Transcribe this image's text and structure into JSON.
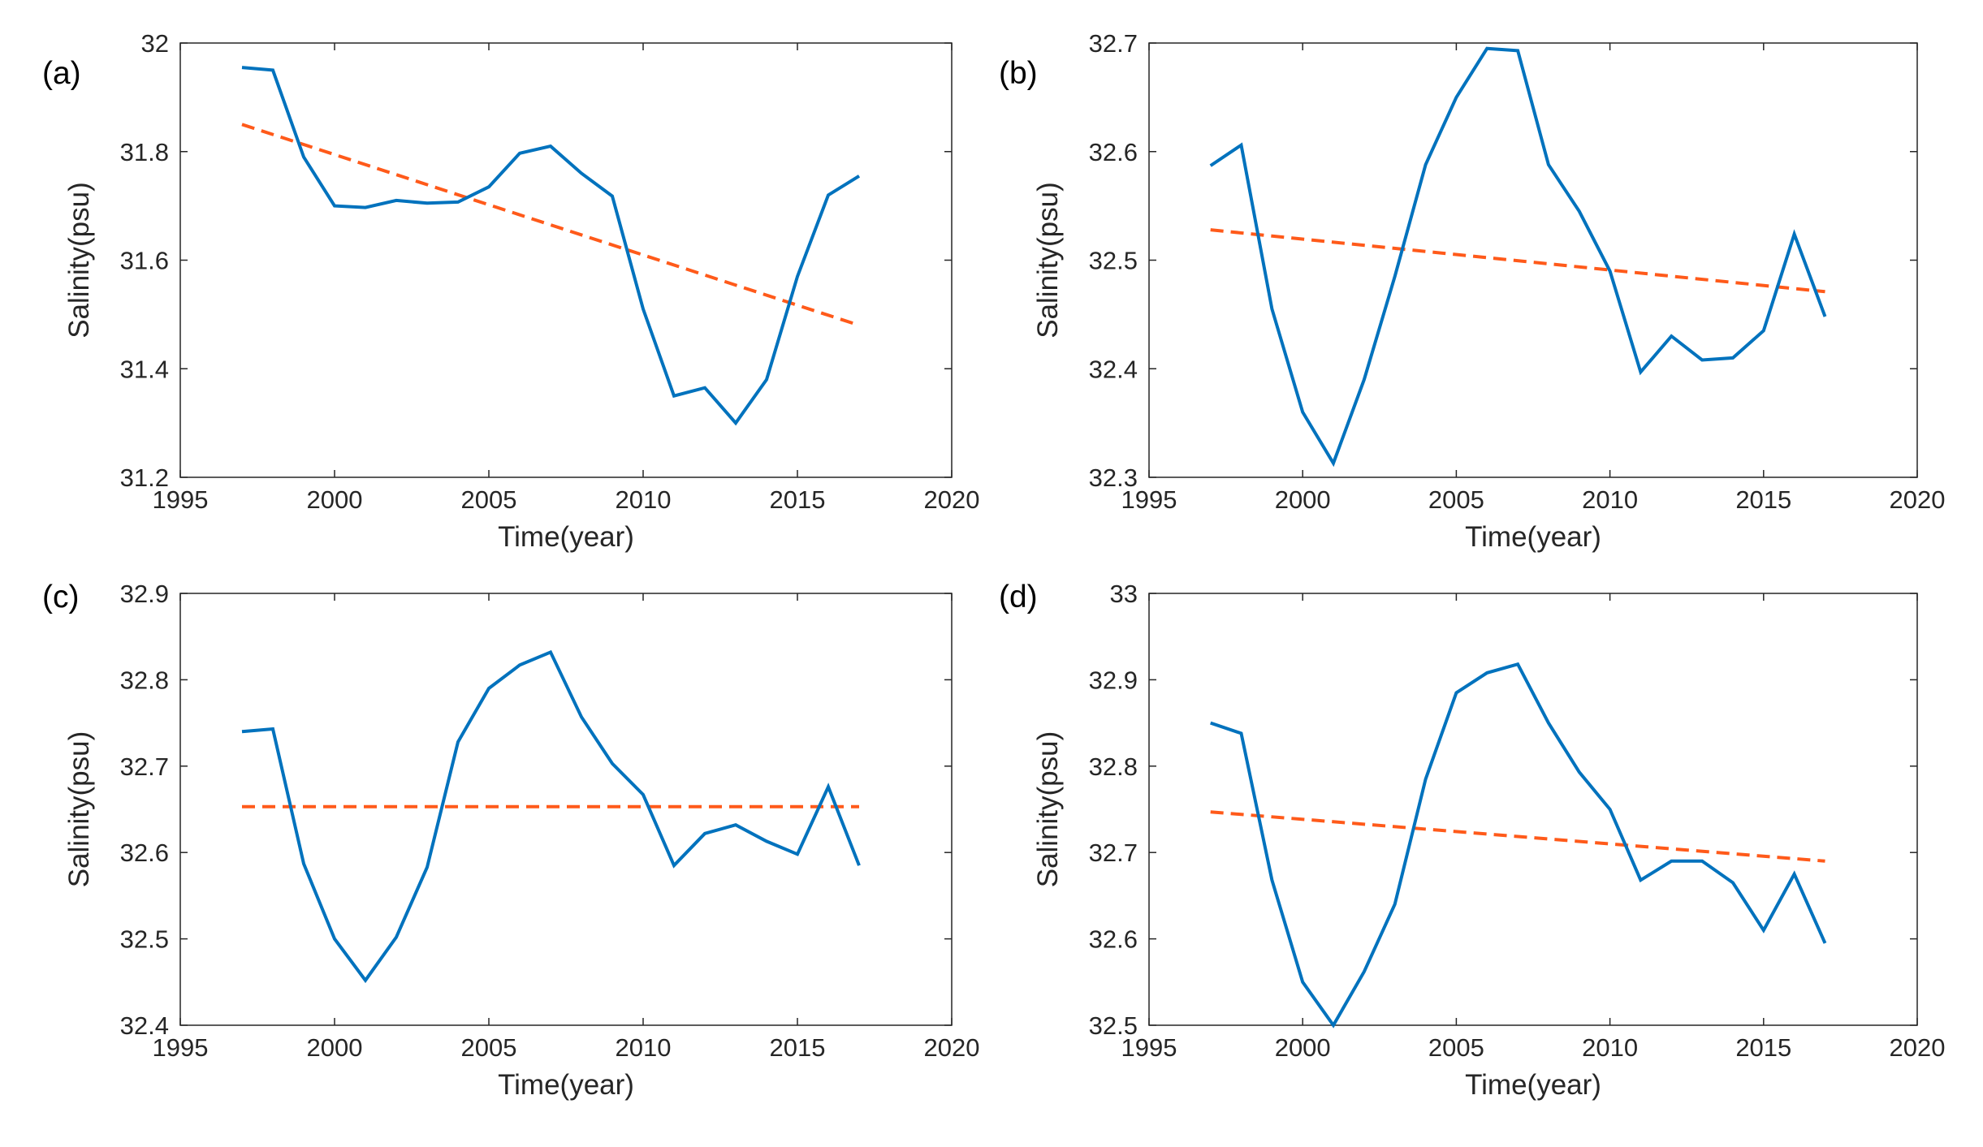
{
  "colors": {
    "observed": "#0072BD",
    "trend": "#FF5A1A",
    "axis": "#262626",
    "background": "#ffffff"
  },
  "chart_data": [
    {
      "panel": "(a)",
      "type": "line",
      "xlabel": "Time(year)",
      "ylabel": "Salinity(psu)",
      "xlim": [
        1995,
        2020
      ],
      "ylim": [
        31.2,
        32.0
      ],
      "xticks": [
        1995,
        2000,
        2005,
        2010,
        2015,
        2020
      ],
      "xtick_labels": [
        "1995",
        "2000",
        "2005",
        "2010",
        "2015",
        "2020"
      ],
      "yticks": [
        31.2,
        31.4,
        31.6,
        31.8,
        32.0
      ],
      "ytick_labels": [
        "31.2",
        "31.4",
        "31.6",
        "31.8",
        "32"
      ],
      "series": [
        {
          "name": "salinity",
          "style": "solid",
          "x": [
            1997,
            1998,
            1999,
            2000,
            2001,
            2002,
            2003,
            2004,
            2005,
            2006,
            2007,
            2008,
            2009,
            2010,
            2011,
            2012,
            2013,
            2014,
            2015,
            2016,
            2017
          ],
          "values": [
            31.955,
            31.95,
            31.79,
            31.7,
            31.697,
            31.71,
            31.705,
            31.707,
            31.735,
            31.797,
            31.81,
            31.76,
            31.718,
            31.51,
            31.35,
            31.365,
            31.3,
            31.38,
            31.57,
            31.72,
            31.755
          ]
        },
        {
          "name": "linear trend",
          "style": "dashed",
          "x": [
            1997,
            2017
          ],
          "values": [
            31.85,
            31.48
          ]
        }
      ]
    },
    {
      "panel": "(b)",
      "type": "line",
      "xlabel": "Time(year)",
      "ylabel": "Salinity(psu)",
      "xlim": [
        1995,
        2020
      ],
      "ylim": [
        32.3,
        32.7
      ],
      "xticks": [
        1995,
        2000,
        2005,
        2010,
        2015,
        2020
      ],
      "xtick_labels": [
        "1995",
        "2000",
        "2005",
        "2010",
        "2015",
        "2020"
      ],
      "yticks": [
        32.3,
        32.4,
        32.5,
        32.6,
        32.7
      ],
      "ytick_labels": [
        "32.3",
        "32.4",
        "32.5",
        "32.6",
        "32.7"
      ],
      "series": [
        {
          "name": "salinity",
          "style": "solid",
          "x": [
            1997,
            1998,
            1999,
            2000,
            2001,
            2002,
            2003,
            2004,
            2005,
            2006,
            2007,
            2008,
            2009,
            2010,
            2011,
            2012,
            2013,
            2014,
            2015,
            2016,
            2017
          ],
          "values": [
            32.587,
            32.606,
            32.455,
            32.36,
            32.313,
            32.39,
            32.485,
            32.588,
            32.65,
            32.695,
            32.693,
            32.588,
            32.545,
            32.49,
            32.397,
            32.43,
            32.408,
            32.41,
            32.435,
            32.524,
            32.448
          ]
        },
        {
          "name": "linear trend",
          "style": "dashed",
          "x": [
            1997,
            2017
          ],
          "values": [
            32.528,
            32.471
          ]
        }
      ]
    },
    {
      "panel": "(c)",
      "type": "line",
      "xlabel": "Time(year)",
      "ylabel": "Salinity(psu)",
      "xlim": [
        1995,
        2020
      ],
      "ylim": [
        32.4,
        32.9
      ],
      "xticks": [
        1995,
        2000,
        2005,
        2010,
        2015,
        2020
      ],
      "xtick_labels": [
        "1995",
        "2000",
        "2005",
        "2010",
        "2015",
        "2020"
      ],
      "yticks": [
        32.4,
        32.5,
        32.6,
        32.7,
        32.8,
        32.9
      ],
      "ytick_labels": [
        "32.4",
        "32.5",
        "32.6",
        "32.7",
        "32.8",
        "32.9"
      ],
      "series": [
        {
          "name": "salinity",
          "style": "solid",
          "x": [
            1997,
            1998,
            1999,
            2000,
            2001,
            2002,
            2003,
            2004,
            2005,
            2006,
            2007,
            2008,
            2009,
            2010,
            2011,
            2012,
            2013,
            2014,
            2015,
            2016,
            2017
          ],
          "values": [
            32.74,
            32.743,
            32.587,
            32.5,
            32.452,
            32.502,
            32.583,
            32.728,
            32.79,
            32.817,
            32.832,
            32.757,
            32.703,
            32.667,
            32.585,
            32.622,
            32.632,
            32.613,
            32.598,
            32.676,
            32.585
          ]
        },
        {
          "name": "linear trend",
          "style": "dashed",
          "x": [
            1997,
            2017
          ],
          "values": [
            32.653,
            32.653
          ]
        }
      ]
    },
    {
      "panel": "(d)",
      "type": "line",
      "xlabel": "Time(year)",
      "ylabel": "Salinity(psu)",
      "xlim": [
        1995,
        2020
      ],
      "ylim": [
        32.5,
        33.0
      ],
      "xticks": [
        1995,
        2000,
        2005,
        2010,
        2015,
        2020
      ],
      "xtick_labels": [
        "1995",
        "2000",
        "2005",
        "2010",
        "2015",
        "2020"
      ],
      "yticks": [
        32.5,
        32.6,
        32.7,
        32.8,
        32.9,
        33.0
      ],
      "ytick_labels": [
        "32.5",
        "32.6",
        "32.7",
        "32.8",
        "32.9",
        "33"
      ],
      "series": [
        {
          "name": "salinity",
          "style": "solid",
          "x": [
            1997,
            1998,
            1999,
            2000,
            2001,
            2002,
            2003,
            2004,
            2005,
            2006,
            2007,
            2008,
            2009,
            2010,
            2011,
            2012,
            2013,
            2014,
            2015,
            2016,
            2017
          ],
          "values": [
            32.85,
            32.838,
            32.668,
            32.55,
            32.5,
            32.562,
            32.64,
            32.785,
            32.885,
            32.908,
            32.918,
            32.85,
            32.793,
            32.75,
            32.668,
            32.69,
            32.69,
            32.665,
            32.61,
            32.675,
            32.595
          ]
        },
        {
          "name": "linear trend",
          "style": "dashed",
          "x": [
            1997,
            2017
          ],
          "values": [
            32.747,
            32.69
          ]
        }
      ]
    }
  ]
}
